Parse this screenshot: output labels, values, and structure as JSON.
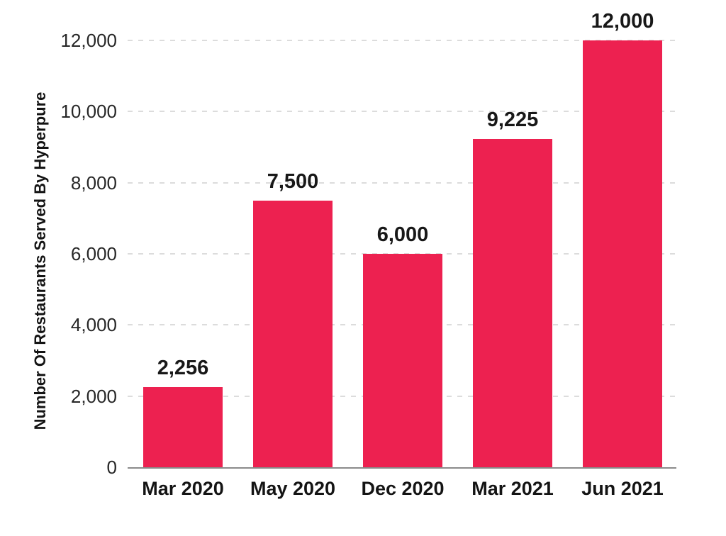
{
  "chart_data": {
    "type": "bar",
    "title": "",
    "xlabel": "",
    "ylabel": "Number Of Restaurants Served By Hyperpure",
    "categories": [
      "Mar 2020",
      "May 2020",
      "Dec 2020",
      "Mar 2021",
      "Jun 2021"
    ],
    "values": [
      2256,
      7500,
      6000,
      9225,
      12000
    ],
    "value_labels": [
      "2,256",
      "7,500",
      "6,000",
      "9,225",
      "12,000"
    ],
    "ylim": [
      0,
      12000
    ],
    "ytick_step": 2000,
    "ytick_labels": [
      "0",
      "2,000",
      "4,000",
      "6,000",
      "8,000",
      "10,000",
      "12,000"
    ],
    "grid": "horizontal-dashed",
    "legend": "none",
    "colors": {
      "bar": "#ED2150",
      "gridline": "#dcdcdc",
      "axis_line": "#8b8b8b",
      "value_text": "#181818",
      "tick_text": "#272727",
      "axis_title_text": "#141414"
    }
  }
}
